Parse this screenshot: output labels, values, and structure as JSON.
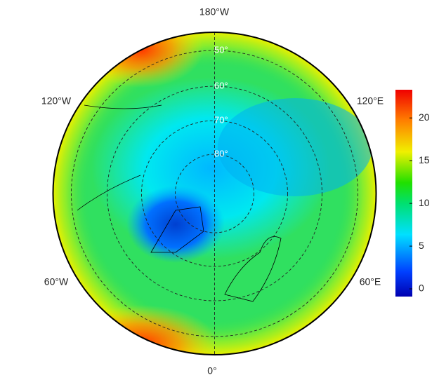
{
  "map": {
    "longitude_labels": [
      "180°W",
      "120°W",
      "60°W",
      "0°",
      "60°E",
      "120°E"
    ],
    "latitude_labels": [
      "50°",
      "60°",
      "70°",
      "80°"
    ],
    "colorbar": {
      "lim": [
        -0.9,
        23.3
      ],
      "ticks": [
        0,
        5,
        10,
        15,
        20
      ]
    }
  }
}
